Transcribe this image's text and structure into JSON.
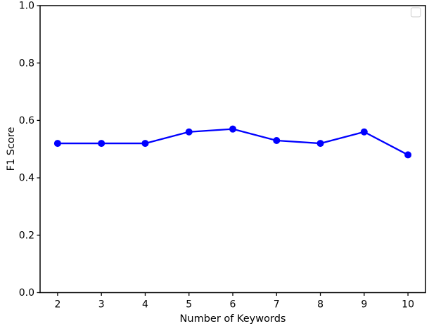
{
  "figure": {
    "background": "#ffffff",
    "axis_color": "#000000"
  },
  "chart_data": {
    "type": "line",
    "title": "",
    "xlabel": "Number of Keywords",
    "ylabel": "F1 Score",
    "x": [
      2,
      3,
      4,
      5,
      6,
      7,
      8,
      9,
      10
    ],
    "series": [
      {
        "name": "",
        "color": "#0000ff",
        "marker": "circle",
        "marker_radius": 5,
        "line_width": 2.3,
        "values": [
          0.52,
          0.52,
          0.52,
          0.56,
          0.57,
          0.53,
          0.52,
          0.56,
          0.48
        ]
      }
    ],
    "xlim": [
      1.6,
      10.4
    ],
    "ylim": [
      0.0,
      1.0
    ],
    "xticks": [
      2,
      3,
      4,
      5,
      6,
      7,
      8,
      9,
      10
    ],
    "yticks": [
      0.0,
      0.2,
      0.4,
      0.6,
      0.8,
      1.0
    ],
    "grid": false,
    "legend": {
      "visible": true,
      "entries": [],
      "position": "upper-right",
      "border_color": "#cccccc"
    }
  }
}
